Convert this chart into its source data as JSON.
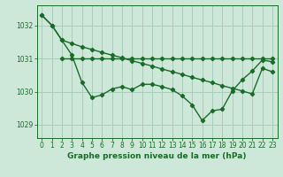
{
  "background_color": "#cde8d8",
  "grid_color": "#a8ccbb",
  "line_color": "#1a6b2a",
  "title": "Graphe pression niveau de la mer (hPa)",
  "xlim": [
    -0.5,
    23.5
  ],
  "ylim": [
    1028.6,
    1032.6
  ],
  "yticks": [
    1029,
    1030,
    1031,
    1032
  ],
  "xticks": [
    0,
    1,
    2,
    3,
    4,
    5,
    6,
    7,
    8,
    9,
    10,
    11,
    12,
    13,
    14,
    15,
    16,
    17,
    18,
    19,
    20,
    21,
    22,
    23
  ],
  "flat_line_x": [
    2,
    3,
    4,
    5,
    6,
    7,
    8,
    9,
    10,
    11,
    12,
    13,
    14,
    15,
    16,
    17,
    18,
    19,
    20,
    21,
    22,
    23
  ],
  "flat_line_y": [
    1031.0,
    1031.0,
    1031.0,
    1031.0,
    1031.0,
    1031.0,
    1031.0,
    1031.0,
    1031.0,
    1031.0,
    1031.0,
    1031.0,
    1031.0,
    1031.0,
    1031.0,
    1031.0,
    1031.0,
    1031.0,
    1031.0,
    1031.0,
    1031.0,
    1031.0
  ],
  "diag_line_x": [
    0,
    1,
    2,
    3,
    4,
    5,
    6,
    7,
    8,
    9,
    10,
    11,
    12,
    13,
    14,
    15,
    16,
    17,
    18,
    19,
    20,
    21,
    22,
    23
  ],
  "diag_line_y": [
    1032.3,
    1032.0,
    1031.55,
    1031.45,
    1031.35,
    1031.27,
    1031.18,
    1031.1,
    1031.02,
    1030.93,
    1030.85,
    1030.77,
    1030.68,
    1030.6,
    1030.52,
    1030.43,
    1030.35,
    1030.27,
    1030.18,
    1030.1,
    1030.02,
    1029.93,
    1030.7,
    1030.6
  ],
  "main_line_x": [
    0,
    1,
    2,
    3,
    4,
    5,
    6,
    7,
    8,
    9,
    10,
    11,
    12,
    13,
    14,
    15,
    16,
    17,
    18,
    19,
    20,
    21,
    22,
    23
  ],
  "main_line_y": [
    1032.3,
    1032.0,
    1031.55,
    1031.1,
    1030.28,
    1029.82,
    1029.9,
    1030.08,
    1030.15,
    1030.06,
    1030.22,
    1030.22,
    1030.15,
    1030.06,
    1029.87,
    1029.6,
    1029.13,
    1029.42,
    1029.47,
    1030.02,
    1030.36,
    1030.62,
    1030.95,
    1030.9
  ],
  "title_fontsize": 6.5,
  "tick_fontsize": 5.5,
  "marker_size": 2.2,
  "line_width": 1.0
}
